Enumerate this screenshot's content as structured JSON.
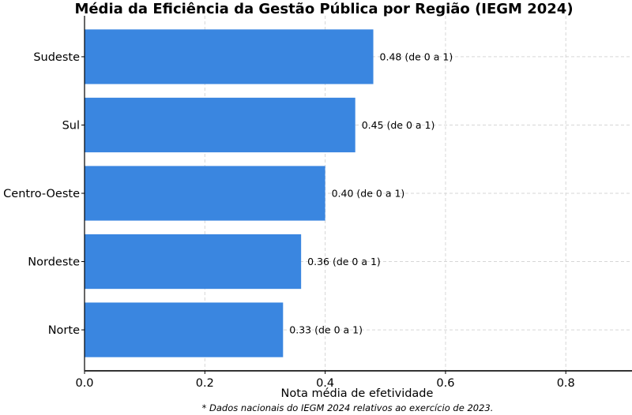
{
  "chart_data": {
    "type": "bar",
    "orientation": "horizontal",
    "title": "Média da Eficiência da Gestão Pública por Região (IEGM 2024)",
    "categories": [
      "Sudeste",
      "Sul",
      "Centro-Oeste",
      "Nordeste",
      "Norte"
    ],
    "values": [
      0.48,
      0.45,
      0.4,
      0.36,
      0.33
    ],
    "data_labels": [
      "0.48 (de 0 a 1)",
      "0.45 (de 0 a 1)",
      "0.40 (de 0 a 1)",
      "0.36 (de 0 a 1)",
      "0.33 (de 0 a 1)"
    ],
    "xlabel": "Nota média de efetividade",
    "ylabel": "",
    "xlim": [
      0,
      0.91
    ],
    "xticks": [
      "0.0",
      "0.2",
      "0.4",
      "0.6",
      "0.8"
    ],
    "xtick_values": [
      0,
      0.2,
      0.4,
      0.6,
      0.8
    ],
    "grid": true,
    "bar_color": "#3a86e0",
    "footnote": "* Dados nacionais do IEGM 2024 relativos ao exercício de 2023."
  }
}
